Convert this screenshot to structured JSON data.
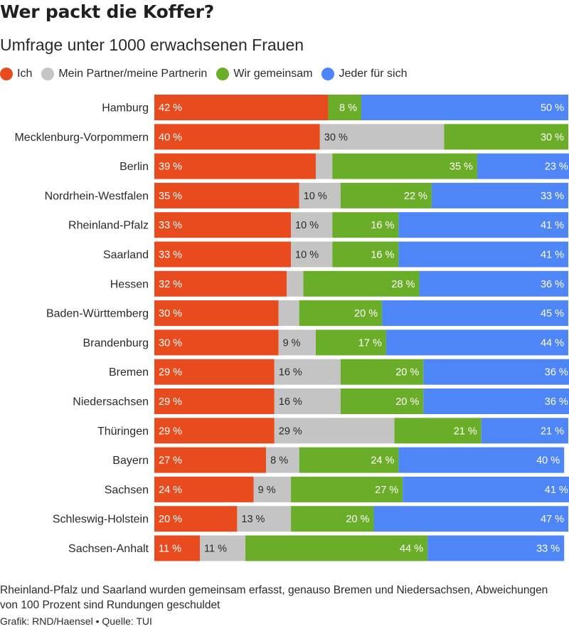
{
  "title": "Wer packt die Koffer?",
  "subtitle": "Umfrage unter 1000 erwachsenen Frauen",
  "footnote": "Rheinland-Pfalz und Saarland wurden gemeinsam erfasst, genauso Bremen und Niedersachsen, Abweichungen von 100 Prozent sind Rundungen geschuldet",
  "source": "Grafik: RND/Haensel • Quelle: TUI",
  "chart_data": {
    "type": "bar",
    "orientation": "horizontal",
    "stacked": true,
    "unit": "%",
    "xlim": [
      0,
      100
    ],
    "grid": false,
    "legend_position": "top-left",
    "categories": [
      "Hamburg",
      "Mecklenburg-Vorpommern",
      "Berlin",
      "Nordrhein-Westfalen",
      "Rheinland-Pfalz",
      "Saarland",
      "Hessen",
      "Baden-Württemberg",
      "Brandenburg",
      "Bremen",
      "Niedersachsen",
      "Thüringen",
      "Bayern",
      "Sachsen",
      "Schleswig-Holstein",
      "Sachsen-Anhalt"
    ],
    "series": [
      {
        "name": "Ich",
        "color": "#e84c1e",
        "values": [
          42,
          40,
          39,
          35,
          33,
          33,
          32,
          30,
          30,
          29,
          29,
          29,
          27,
          24,
          20,
          11
        ],
        "labels": [
          "42 %",
          "40 %",
          "39 %",
          "35 %",
          "33 %",
          "33 %",
          "32 %",
          "30 %",
          "30 %",
          "29 %",
          "29 %",
          "29 %",
          "27 %",
          "24 %",
          "20 %",
          "11 %"
        ]
      },
      {
        "name": "Mein Partner/meine Partnerin",
        "color": "#c4c4c4",
        "values": [
          0,
          30,
          4,
          10,
          10,
          10,
          4,
          5,
          9,
          16,
          16,
          29,
          8,
          9,
          13,
          11
        ],
        "labels": [
          "",
          "30 %",
          "",
          "10 %",
          "10 %",
          "10 %",
          "",
          "",
          "9 %",
          "16 %",
          "16 %",
          "29 %",
          "8 %",
          "9 %",
          "13 %",
          "11 %"
        ]
      },
      {
        "name": "Wir gemeinsam",
        "color": "#6aad28",
        "values": [
          8,
          30,
          35,
          22,
          16,
          16,
          28,
          20,
          17,
          20,
          20,
          21,
          24,
          27,
          20,
          44
        ],
        "labels": [
          "8 %",
          "30 %",
          "35 %",
          "22 %",
          "16 %",
          "16 %",
          "28 %",
          "20 %",
          "17 %",
          "20 %",
          "20 %",
          "21 %",
          "24 %",
          "27 %",
          "20 %",
          "44 %"
        ]
      },
      {
        "name": "Jeder für sich",
        "color": "#4f86f7",
        "values": [
          50,
          0,
          23,
          33,
          41,
          41,
          36,
          45,
          44,
          36,
          36,
          21,
          40,
          41,
          47,
          33
        ],
        "labels": [
          "50 %",
          "",
          "23 %",
          "33 %",
          "41 %",
          "41 %",
          "36 %",
          "45 %",
          "44 %",
          "36 %",
          "36 %",
          "21 %",
          "40 %",
          "41 %",
          "47 %",
          "33 %"
        ]
      }
    ]
  }
}
